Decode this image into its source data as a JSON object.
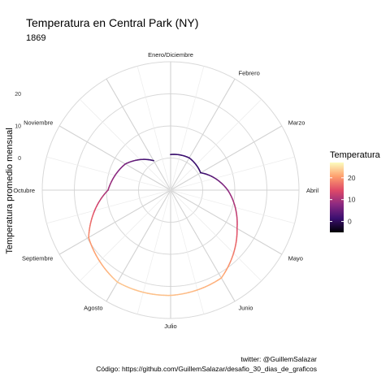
{
  "chart_data": {
    "type": "line",
    "coordinate_system": "polar",
    "title": "Temperatura en Central Park (NY)",
    "subtitle": "1869",
    "ylabel": "Temperatura promedio mensual",
    "categories": [
      "Enero/Diciembre",
      "Febrero",
      "Marzo",
      "Abril",
      "Mayo",
      "Junio",
      "Julio",
      "Agosto",
      "Septiembre",
      "Octubre",
      "Noviembre"
    ],
    "radial_ticks": [
      "0",
      "10",
      "20"
    ],
    "ylim": [
      -10,
      30
    ],
    "grid": true,
    "series": [
      {
        "x": [
          1,
          2,
          3,
          4,
          5,
          6,
          7,
          8,
          9,
          10,
          11,
          12
        ],
        "values": [
          1.1,
          1.6,
          0.8,
          7.8,
          13.9,
          21.6,
          22.8,
          23.1,
          19.5,
          9.5,
          6.3,
          0.6
        ]
      }
    ],
    "color_scale": {
      "name": "Temperatura",
      "ticks": [
        0,
        10,
        20
      ],
      "min": -5,
      "max": 27,
      "colors": [
        "#000004",
        "#3b0f70",
        "#8c2981",
        "#de4968",
        "#fe9f6d",
        "#fcfdbf"
      ]
    },
    "legend_position": "right"
  },
  "caption": {
    "line1": "twitter: @GuillemSalazar",
    "line2": "Código: https://github.com/GuillemSalazar/desafio_30_dias_de_graficos"
  }
}
